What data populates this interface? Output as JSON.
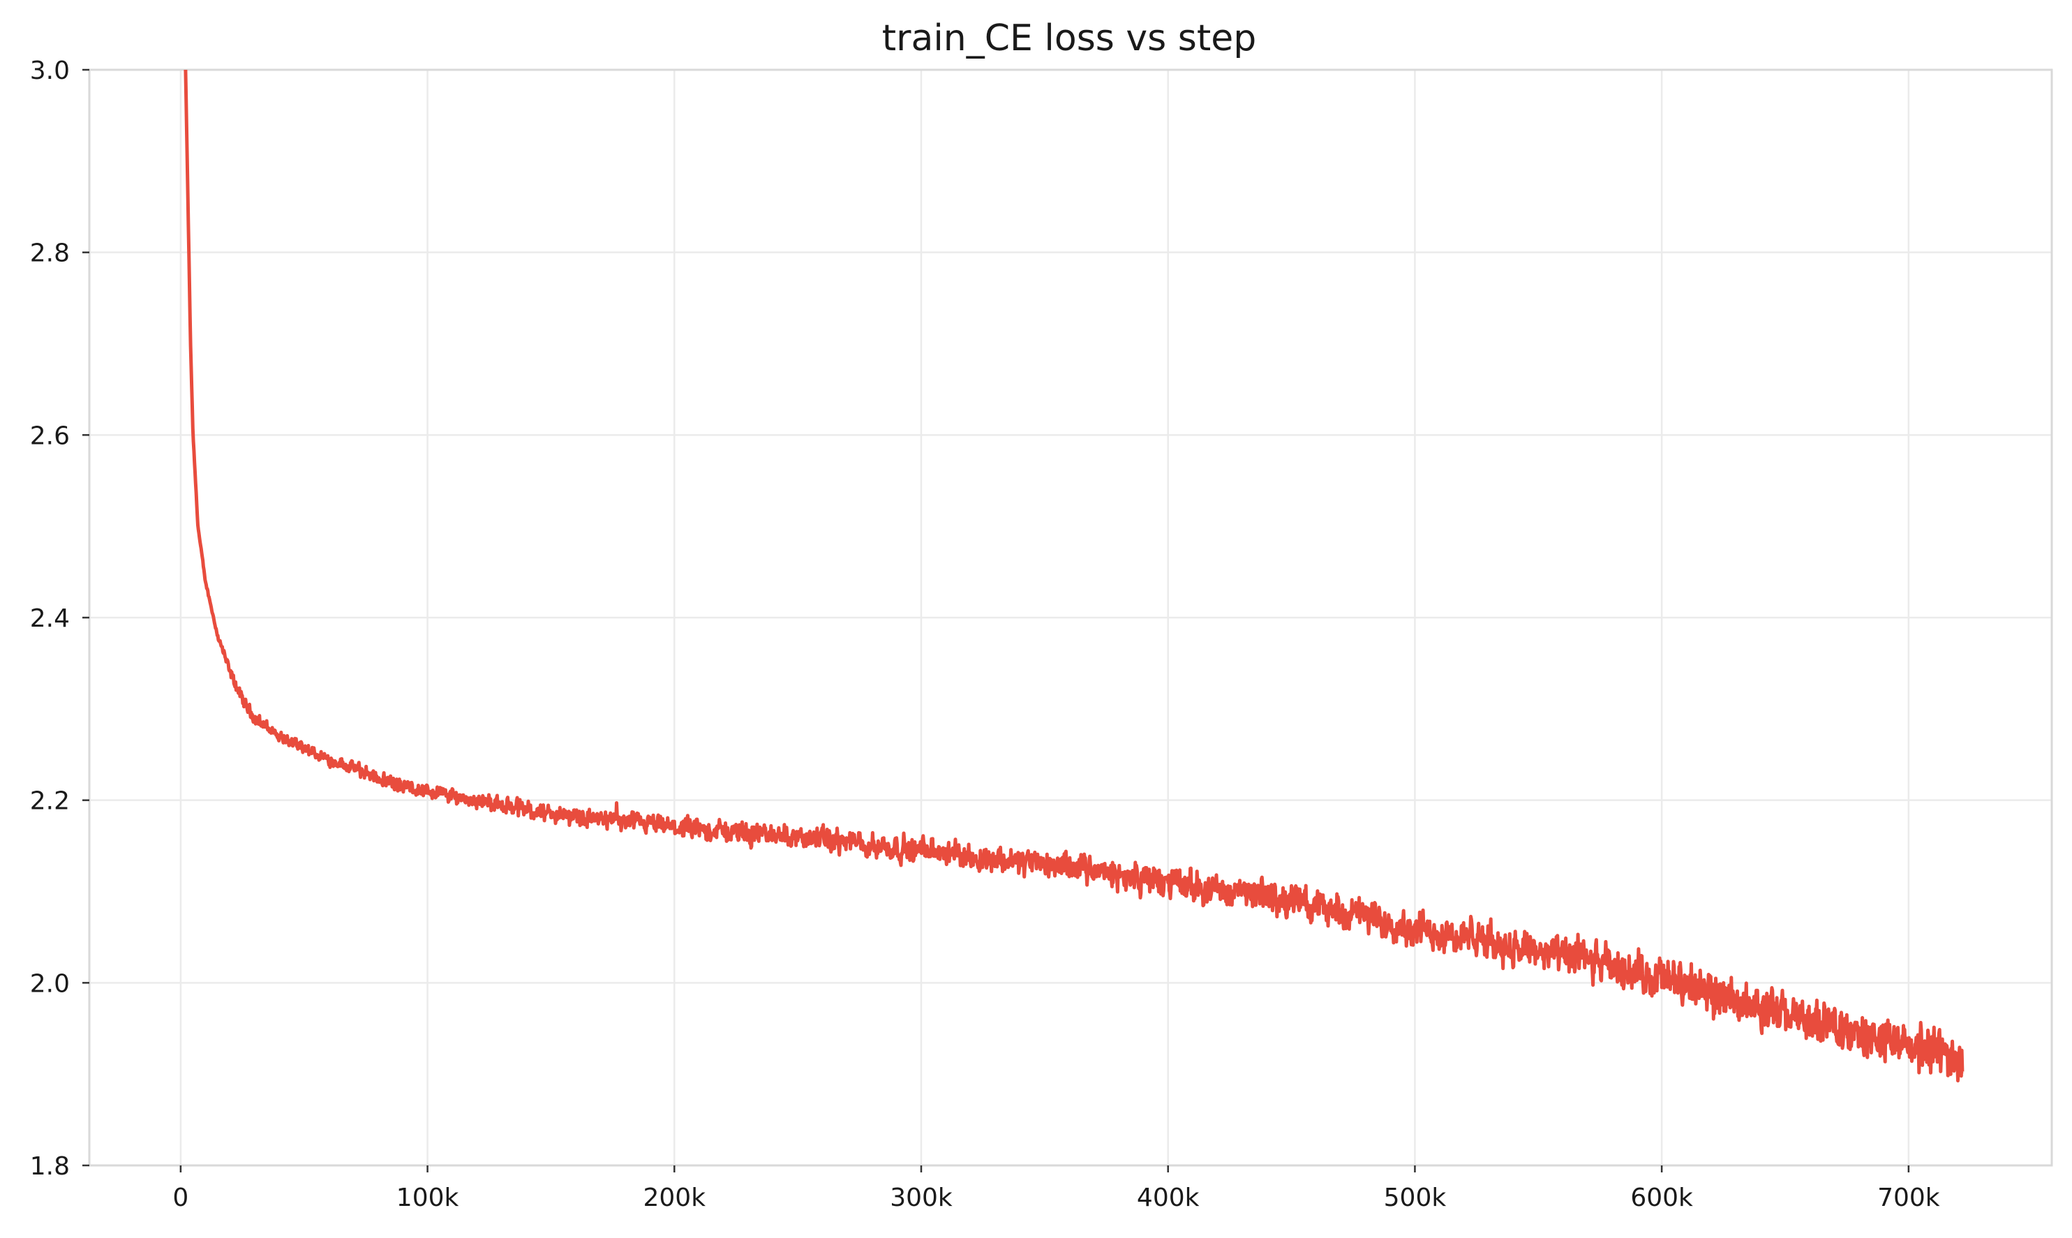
{
  "chart_data": {
    "type": "line",
    "title": "train_CE loss vs step",
    "xlabel": "",
    "ylabel": "",
    "xlim": [
      -37000,
      758000
    ],
    "ylim": [
      1.8,
      3.0
    ],
    "x_ticks": [
      0,
      100000,
      200000,
      300000,
      400000,
      500000,
      600000,
      700000
    ],
    "x_tick_labels": [
      "0",
      "100k",
      "200k",
      "300k",
      "400k",
      "500k",
      "600k",
      "700k"
    ],
    "y_ticks": [
      1.8,
      2.0,
      2.2,
      2.4,
      2.6,
      2.8,
      3.0
    ],
    "y_tick_labels": [
      "1.8",
      "2.0",
      "2.2",
      "2.4",
      "2.6",
      "2.8",
      "3.0"
    ],
    "grid": true,
    "legend": "none",
    "series": [
      {
        "color": "#e84c3d",
        "noise": "high-frequency fluctuation around the trend, amplitude growing with step",
        "x": [
          2000,
          3000,
          4000,
          5000,
          7000,
          10000,
          15000,
          20000,
          25000,
          30000,
          40000,
          50000,
          60000,
          70000,
          80000,
          90000,
          100000,
          120000,
          150000,
          200000,
          250000,
          300000,
          350000,
          400000,
          450000,
          500000,
          550000,
          600000,
          650000,
          700000,
          722000
        ],
        "y": [
          3.0,
          2.85,
          2.7,
          2.6,
          2.5,
          2.44,
          2.38,
          2.34,
          2.31,
          2.29,
          2.27,
          2.255,
          2.245,
          2.235,
          2.225,
          2.215,
          2.21,
          2.2,
          2.185,
          2.17,
          2.16,
          2.145,
          2.13,
          2.11,
          2.09,
          2.06,
          2.035,
          2.005,
          1.965,
          1.93,
          1.92
        ]
      }
    ]
  }
}
